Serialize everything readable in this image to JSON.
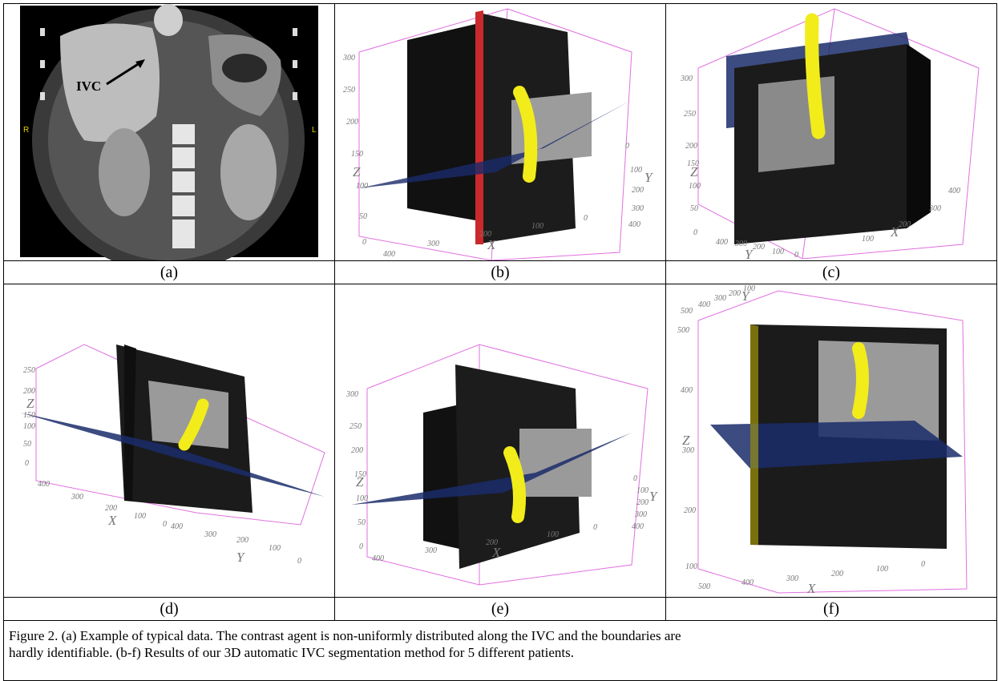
{
  "panels": {
    "a": {
      "label": "(a)",
      "annotation": "IVC",
      "left_marker": "R",
      "right_marker": "L"
    },
    "b": {
      "label": "(b)",
      "z_ticks": [
        "300",
        "250",
        "200",
        "150",
        "100",
        "50",
        "0"
      ],
      "x_ticks": [
        "400",
        "300",
        "200",
        "100",
        "0"
      ],
      "y_ticks": [
        "0",
        "100",
        "200",
        "300",
        "400"
      ],
      "axes": {
        "x": "X",
        "y": "Y",
        "z": "Z"
      }
    },
    "c": {
      "label": "(c)",
      "z_ticks": [
        "300",
        "250",
        "200",
        "150",
        "100",
        "50",
        "0"
      ],
      "x_ticks": [
        "400",
        "300",
        "200",
        "100",
        "0"
      ],
      "y_ticks": [
        "100",
        "200",
        "300",
        "400"
      ],
      "axes": {
        "x": "X",
        "y": "Y",
        "z": "Z"
      }
    },
    "d": {
      "label": "(d)",
      "z_ticks": [
        "250",
        "200",
        "150",
        "100",
        "50",
        "0"
      ],
      "x_ticks": [
        "400",
        "300",
        "200",
        "100",
        "0"
      ],
      "y_ticks": [
        "400",
        "300",
        "200",
        "100",
        "0"
      ],
      "axes": {
        "x": "X",
        "y": "Y",
        "z": "Z"
      }
    },
    "e": {
      "label": "(e)",
      "z_ticks": [
        "300",
        "250",
        "200",
        "150",
        "100",
        "50",
        "0"
      ],
      "x_ticks": [
        "400",
        "300",
        "200",
        "100",
        "0"
      ],
      "y_ticks": [
        "0",
        "100",
        "200",
        "300",
        "400"
      ],
      "axes": {
        "x": "X",
        "y": "Y",
        "z": "Z"
      }
    },
    "f": {
      "label": "(f)",
      "z_ticks": [
        "500",
        "400",
        "300",
        "200",
        "100",
        "0"
      ],
      "x_ticks": [
        "500",
        "400",
        "300",
        "200",
        "100",
        "0"
      ],
      "y_ticks": [
        "500",
        "400",
        "300",
        "200",
        "100"
      ],
      "axes": {
        "x": "X",
        "y": "Y",
        "z": "Z"
      }
    }
  },
  "caption": {
    "line1": "Figure 2. (a) Example of typical data. The contrast agent is non-uniformly distributed along the IVC and the boundaries are",
    "line2": "hardly identifiable. (b-f) Results of our 3D automatic IVC segmentation method for 5 different patients."
  },
  "colors": {
    "box": "#e070e0",
    "vessel": "#f2ec1a",
    "plane": "#1a2b6a",
    "ct_bg": "#000000"
  }
}
